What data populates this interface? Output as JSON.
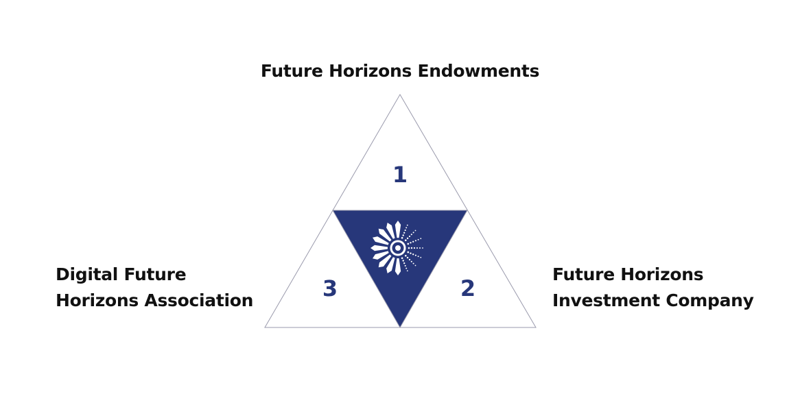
{
  "labels": {
    "top": "Future Horizons Endowments",
    "left_line1": "Digital Future",
    "left_line2": "Horizons Association",
    "right_line1": "Future Horizons",
    "right_line2": "Investment Company"
  },
  "sections": {
    "top_number": "1",
    "right_number": "2",
    "left_number": "3"
  },
  "colors": {
    "accent": "#27377a",
    "outline": "#9a9aac",
    "text": "#111111",
    "logo": "#ffffff"
  },
  "icons": {
    "center": "sunburst-logo-icon"
  }
}
